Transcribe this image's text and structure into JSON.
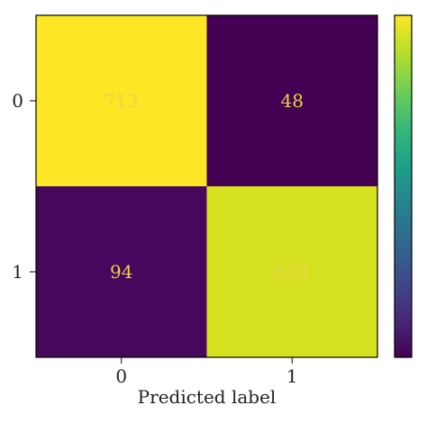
{
  "chart_data": {
    "type": "heatmap",
    "title": "",
    "xlabel": "Predicted label",
    "ylabel": "",
    "x_categories": [
      "0",
      "1"
    ],
    "y_categories": [
      "0",
      "1"
    ],
    "values": [
      [
        713,
        48
      ],
      [
        94,
        634
      ]
    ],
    "colormap": "viridis",
    "vmin": 48,
    "vmax": 713,
    "cell_colors": [
      [
        "#fde725",
        "#440154"
      ],
      [
        "#46085c",
        "#d6e21f"
      ]
    ],
    "text_color": "#e8d44a",
    "colorbar": {
      "position": "right",
      "tick_labels": []
    },
    "grid": false
  }
}
